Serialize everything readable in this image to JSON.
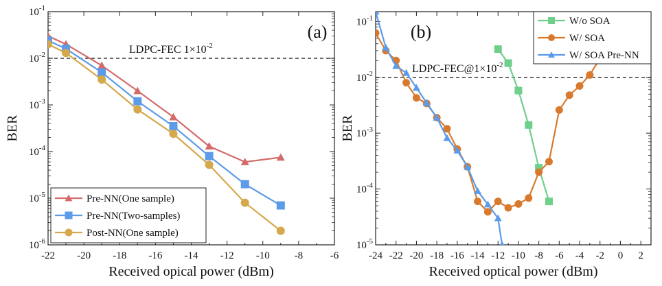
{
  "chart_data": [
    {
      "panel": "(a)",
      "type": "line",
      "xlabel": "Received opical power (dBm)",
      "ylabel": "BER",
      "log_y": true,
      "xlim": [
        -22,
        -6
      ],
      "ylim": [
        1e-06,
        0.1
      ],
      "xticks": [
        -22,
        -20,
        -18,
        -16,
        -14,
        -12,
        -10,
        -8,
        -6
      ],
      "xtick_labels": [
        "-22",
        "-20",
        "-18",
        "-16",
        "-14",
        "-12",
        "-10",
        "-8",
        "-6"
      ],
      "ytick_labels": [
        {
          "base": "10",
          "exp": "-6"
        },
        {
          "base": "10",
          "exp": "-5"
        },
        {
          "base": "10",
          "exp": "-4"
        },
        {
          "base": "10",
          "exp": "-3"
        },
        {
          "base": "10",
          "exp": "-2"
        },
        {
          "base": "10",
          "exp": "-1"
        }
      ],
      "grid": false,
      "legend_position": "bottom-left",
      "threshold": {
        "value": 0.01,
        "label": "LDPC-FEC 1×10",
        "label_exp": "-2"
      },
      "series": [
        {
          "name": "Pre-NN(One sample)",
          "color": "#d46b6b",
          "marker": "triangle",
          "x": [
            -22,
            -21,
            -19,
            -17,
            -15,
            -13,
            -11,
            -9
          ],
          "y": [
            0.03,
            0.02,
            0.007,
            0.002,
            0.00055,
            0.00013,
            6e-05,
            7.5e-05
          ]
        },
        {
          "name": "Pre-NN(Two-samples)",
          "color": "#5b9be8",
          "marker": "square",
          "x": [
            -22,
            -21,
            -19,
            -17,
            -15,
            -13,
            -11,
            -9
          ],
          "y": [
            0.024,
            0.016,
            0.005,
            0.0012,
            0.00035,
            8e-05,
            2e-05,
            7e-06
          ]
        },
        {
          "name": "Post-NN(One sample)",
          "color": "#d4a84b",
          "marker": "circle",
          "x": [
            -22,
            -21,
            -19,
            -17,
            -15,
            -13,
            -11,
            -9
          ],
          "y": [
            0.02,
            0.013,
            0.0035,
            0.0008,
            0.00024,
            5.2e-05,
            8e-06,
            2e-06
          ]
        }
      ]
    },
    {
      "panel": "(b)",
      "type": "line",
      "xlabel": "Received optical power (dBm)",
      "ylabel": "BER",
      "log_y": true,
      "xlim": [
        -24,
        3
      ],
      "ylim": [
        1e-05,
        0.15
      ],
      "xticks": [
        -24,
        -22,
        -20,
        -18,
        -16,
        -14,
        -12,
        -10,
        -8,
        -6,
        -4,
        -2,
        0,
        2
      ],
      "xtick_labels": [
        "-24",
        "-22",
        "-20",
        "-18",
        "-16",
        "-14",
        "-12",
        "-10",
        "-8",
        "-6",
        "-4",
        "-2",
        "0",
        "2"
      ],
      "ytick_labels": [
        {
          "base": "10",
          "exp": "-5"
        },
        {
          "base": "10",
          "exp": "-4"
        },
        {
          "base": "10",
          "exp": "-3"
        },
        {
          "base": "10",
          "exp": "-2"
        },
        {
          "base": "10",
          "exp": "-1"
        }
      ],
      "grid": false,
      "legend_position": "top-right",
      "threshold": {
        "value": 0.01,
        "label": "LDPC-FEC@1×10",
        "label_exp": "-2"
      },
      "series": [
        {
          "name": "W/o SOA",
          "color": "#6fcf8b",
          "marker": "square",
          "x": [
            -12,
            -11,
            -10,
            -9,
            -8,
            -7
          ],
          "y": [
            0.032,
            0.018,
            0.0058,
            0.0014,
            0.00024,
            6e-05
          ]
        },
        {
          "name": "W/ SOA",
          "color": "#d9792e",
          "marker": "circle",
          "x": [
            -24,
            -23,
            -22,
            -21,
            -20,
            -19,
            -18,
            -17,
            -16,
            -15,
            -14,
            -13,
            -12,
            -11,
            -10,
            -9,
            -8,
            -7,
            -6,
            -5,
            -4,
            -3,
            -2
          ],
          "y": [
            0.062,
            0.03,
            0.02,
            0.008,
            0.0043,
            0.0034,
            0.0019,
            0.0012,
            0.00052,
            0.00025,
            6e-05,
            3.9e-05,
            6e-05,
            4.6e-05,
            5.4e-05,
            6.9e-05,
            0.0002,
            0.00031,
            0.0026,
            0.0048,
            0.007,
            0.011,
            0.022
          ]
        },
        {
          "name": "W/ SOA Pre-NN",
          "color": "#5b9be8",
          "marker": "triangle",
          "x": [
            -24,
            -23,
            -22,
            -21,
            -20,
            -19,
            -18,
            -17,
            -16,
            -15,
            -14,
            -13,
            -12,
            -11.6
          ],
          "y": [
            0.15,
            0.034,
            0.016,
            0.012,
            0.0065,
            0.0035,
            0.0019,
            0.00082,
            0.00049,
            0.00025,
            9.2e-05,
            5.3e-05,
            3e-05,
            1e-05
          ]
        }
      ]
    }
  ]
}
